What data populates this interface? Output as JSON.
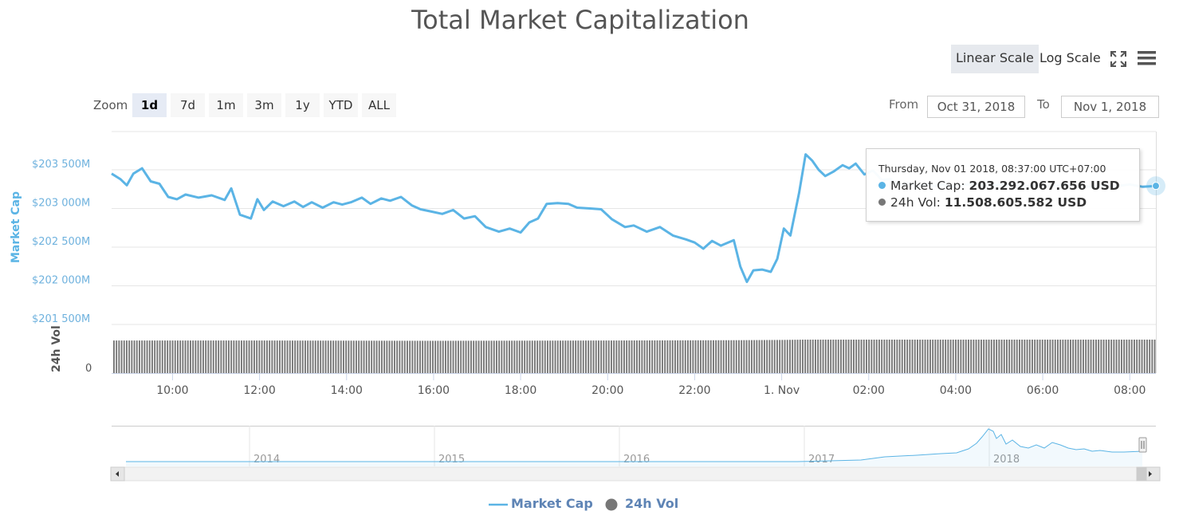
{
  "title": "Total Market Capitalization",
  "toolbar": {
    "linear_label": "Linear Scale",
    "log_label": "Log Scale",
    "fullscreen_icon": "fullscreen-icon",
    "menu_icon": "hamburger-menu-icon"
  },
  "zoom": {
    "label": "Zoom",
    "buttons": [
      "1d",
      "7d",
      "1m",
      "3m",
      "1y",
      "YTD",
      "ALL"
    ],
    "active": "1d"
  },
  "range": {
    "from_label": "From",
    "from_value": "Oct 31, 2018",
    "to_label": "To",
    "to_value": "Nov 1, 2018"
  },
  "tooltip": {
    "date": "Thursday, Nov 01 2018, 08:37:00 UTC+07:00",
    "rows": [
      {
        "label": "Market Cap:",
        "value": "203.292.067.656 USD",
        "color": "#5bb4e5"
      },
      {
        "label": "24h Vol:",
        "value": "11.508.605.582 USD",
        "color": "#777777"
      }
    ]
  },
  "legend": [
    {
      "label": "Market Cap",
      "color": "#5bb4e5"
    },
    {
      "label": "24h Vol",
      "color": "#777777"
    }
  ],
  "chart_data": {
    "type": "line",
    "title": "Total Market Capitalization",
    "ylabel": "Market Cap",
    "ylabel_volume": "24h Vol",
    "ylim": [
      201500,
      203500
    ],
    "y_ticks": [
      "$201 500M",
      "$202 000M",
      "$202 500M",
      "$203 000M",
      "$203 500M"
    ],
    "volume_ticks": [
      "0"
    ],
    "x_ticks": [
      "10:00",
      "12:00",
      "14:00",
      "16:00",
      "18:00",
      "20:00",
      "22:00",
      "1. Nov",
      "02:00",
      "04:00",
      "06:00",
      "08:00"
    ],
    "x_range_hours": [
      8.6,
      32.6
    ],
    "series": [
      {
        "name": "Market Cap",
        "color": "#5bb4e5",
        "points": [
          [
            8.6,
            203450
          ],
          [
            8.8,
            203380
          ],
          [
            8.95,
            203300
          ],
          [
            9.1,
            203450
          ],
          [
            9.3,
            203520
          ],
          [
            9.5,
            203350
          ],
          [
            9.7,
            203320
          ],
          [
            9.9,
            203150
          ],
          [
            10.1,
            203120
          ],
          [
            10.3,
            203180
          ],
          [
            10.6,
            203140
          ],
          [
            10.9,
            203170
          ],
          [
            11.2,
            203110
          ],
          [
            11.35,
            203260
          ],
          [
            11.55,
            202920
          ],
          [
            11.8,
            202870
          ],
          [
            11.95,
            203120
          ],
          [
            12.1,
            202980
          ],
          [
            12.3,
            203090
          ],
          [
            12.55,
            203030
          ],
          [
            12.8,
            203090
          ],
          [
            13.0,
            203020
          ],
          [
            13.2,
            203080
          ],
          [
            13.45,
            203010
          ],
          [
            13.7,
            203080
          ],
          [
            13.9,
            203050
          ],
          [
            14.1,
            203080
          ],
          [
            14.35,
            203140
          ],
          [
            14.55,
            203060
          ],
          [
            14.8,
            203130
          ],
          [
            15.0,
            203100
          ],
          [
            15.25,
            203150
          ],
          [
            15.5,
            203040
          ],
          [
            15.7,
            202990
          ],
          [
            15.95,
            202960
          ],
          [
            16.2,
            202930
          ],
          [
            16.45,
            202980
          ],
          [
            16.7,
            202870
          ],
          [
            16.95,
            202900
          ],
          [
            17.2,
            202760
          ],
          [
            17.5,
            202700
          ],
          [
            17.75,
            202740
          ],
          [
            18.0,
            202690
          ],
          [
            18.2,
            202820
          ],
          [
            18.4,
            202870
          ],
          [
            18.6,
            203060
          ],
          [
            18.85,
            203070
          ],
          [
            19.1,
            203060
          ],
          [
            19.3,
            203010
          ],
          [
            19.6,
            203000
          ],
          [
            19.85,
            202990
          ],
          [
            20.1,
            202860
          ],
          [
            20.4,
            202760
          ],
          [
            20.6,
            202780
          ],
          [
            20.9,
            202700
          ],
          [
            21.2,
            202760
          ],
          [
            21.5,
            202650
          ],
          [
            21.8,
            202600
          ],
          [
            22.0,
            202560
          ],
          [
            22.2,
            202480
          ],
          [
            22.4,
            202580
          ],
          [
            22.6,
            202520
          ],
          [
            22.9,
            202590
          ],
          [
            23.05,
            202250
          ],
          [
            23.2,
            202050
          ],
          [
            23.35,
            202200
          ],
          [
            23.55,
            202210
          ],
          [
            23.75,
            202180
          ],
          [
            23.9,
            202350
          ],
          [
            24.05,
            202740
          ],
          [
            24.2,
            202650
          ],
          [
            24.4,
            203200
          ],
          [
            24.55,
            203700
          ],
          [
            24.7,
            203620
          ],
          [
            24.85,
            203500
          ],
          [
            25.0,
            203420
          ],
          [
            25.2,
            203480
          ],
          [
            25.4,
            203560
          ],
          [
            25.55,
            203520
          ],
          [
            25.7,
            203580
          ],
          [
            25.9,
            203440
          ],
          [
            26.1,
            203490
          ],
          [
            26.3,
            203370
          ],
          [
            26.5,
            203380
          ],
          [
            26.7,
            203300
          ],
          [
            26.9,
            203330
          ],
          [
            27.1,
            203280
          ],
          [
            27.3,
            203320
          ],
          [
            27.5,
            203290
          ],
          [
            27.7,
            203310
          ],
          [
            27.9,
            203280
          ],
          [
            28.1,
            203300
          ],
          [
            28.4,
            203320
          ],
          [
            28.7,
            203290
          ],
          [
            29.0,
            203310
          ],
          [
            29.3,
            203300
          ],
          [
            29.6,
            203290
          ],
          [
            29.9,
            203300
          ],
          [
            30.2,
            203290
          ],
          [
            30.5,
            203310
          ],
          [
            30.8,
            203290
          ],
          [
            31.1,
            203280
          ],
          [
            31.4,
            203300
          ],
          [
            31.7,
            203290
          ],
          [
            32.0,
            203310
          ],
          [
            32.3,
            203280
          ],
          [
            32.6,
            203292
          ]
        ]
      },
      {
        "name": "24h Vol",
        "color": "#777777",
        "points": [
          [
            8.6,
            11.2
          ],
          [
            12.0,
            11.2
          ],
          [
            16.0,
            11.1
          ],
          [
            20.0,
            11.2
          ],
          [
            22.9,
            11.3
          ],
          [
            24.0,
            11.4
          ],
          [
            24.5,
            11.5
          ],
          [
            28.0,
            11.5
          ],
          [
            32.6,
            11.5
          ]
        ]
      }
    ],
    "navigator": {
      "x_ticks": [
        "2014",
        "2015",
        "2016",
        "2017",
        "2018"
      ]
    },
    "grid": true,
    "legend_position": "bottom-center"
  }
}
